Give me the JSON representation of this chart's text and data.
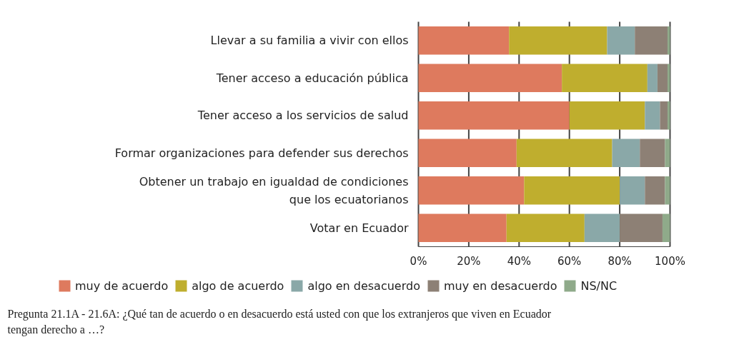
{
  "chart_data": {
    "type": "bar",
    "orientation": "horizontal",
    "stacked": true,
    "categories": [
      "Llevar a su familia a vivir con ellos",
      "Tener acceso a educación pública",
      "Tener acceso a los servicios de salud",
      "Formar organizaciones para defender sus derechos",
      "Obtener un trabajo en igualdad de condiciones\nque los ecuatorianos",
      "Votar en Ecuador"
    ],
    "series": [
      {
        "name": "muy de acuerdo",
        "color": "#de7a5e",
        "values": [
          36,
          57,
          60,
          39,
          42,
          35
        ]
      },
      {
        "name": "algo de acuerdo",
        "color": "#bfae2e",
        "values": [
          39,
          34,
          30,
          38,
          38,
          31
        ]
      },
      {
        "name": "algo en desacuerdo",
        "color": "#8aa8a8",
        "values": [
          11,
          4,
          6,
          11,
          10,
          14
        ]
      },
      {
        "name": "muy en desacuerdo",
        "color": "#8d8075",
        "values": [
          13,
          4,
          3,
          10,
          8,
          17
        ]
      },
      {
        "name": "NS/NC",
        "color": "#8faa8a",
        "values": [
          1,
          1,
          1,
          2,
          2,
          3
        ]
      }
    ],
    "xlim": [
      0,
      100
    ],
    "xticks": [
      {
        "value": 0,
        "label": "0%"
      },
      {
        "value": 20,
        "label": "20%"
      },
      {
        "value": 40,
        "label": "40%"
      },
      {
        "value": 60,
        "label": "60%"
      },
      {
        "value": 80,
        "label": "80%"
      },
      {
        "value": 100,
        "label": "100%"
      }
    ],
    "grid": "x",
    "legend": "bottom",
    "annotations": [
      "Pregunta 21.1A - 21.6A: ¿Qué tan de acuerdo o en desacuerdo está usted con que los extranjeros que viven en Ecuador tengan derecho a …?"
    ]
  }
}
